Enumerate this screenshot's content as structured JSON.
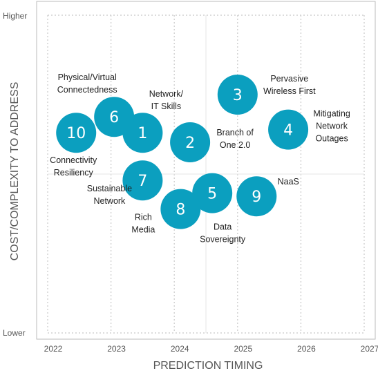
{
  "chart_data": {
    "type": "scatter",
    "xlabel": "PREDICTION TIMING",
    "ylabel": "COST/COMPLEXITY TO ADDRESS",
    "x_ticks": [
      "2022",
      "2023",
      "2024",
      "2025",
      "2026",
      "2027"
    ],
    "xlim": [
      2022,
      2027
    ],
    "y_ticks": [
      "Lower",
      "Higher"
    ],
    "ylim": [
      0,
      100
    ],
    "grid": true,
    "colors": {
      "bubble": "#0b9fbf",
      "bubble_text": "#ffffff",
      "grid": "#d0d0d0",
      "frame": "#bbbbbb"
    },
    "points": [
      {
        "id": "1",
        "x": 2023.5,
        "y": 63,
        "label": [
          "Network/",
          "IT Skills"
        ]
      },
      {
        "id": "2",
        "x": 2024.25,
        "y": 60,
        "label": [
          "Branch of",
          "One 2.0"
        ]
      },
      {
        "id": "3",
        "x": 2025.0,
        "y": 75,
        "label": [
          "Pervasive",
          "Wireless First"
        ]
      },
      {
        "id": "4",
        "x": 2025.8,
        "y": 64,
        "label": [
          "Mitigating",
          "Network",
          "Outages"
        ]
      },
      {
        "id": "5",
        "x": 2024.6,
        "y": 44,
        "label": [
          "Data",
          "Sovereignty"
        ]
      },
      {
        "id": "6",
        "x": 2023.05,
        "y": 68,
        "label": [
          "Physical/Virtual",
          "Connectedness"
        ]
      },
      {
        "id": "7",
        "x": 2023.5,
        "y": 48,
        "label": [
          "Sustainable",
          "Network"
        ]
      },
      {
        "id": "8",
        "x": 2024.1,
        "y": 39,
        "label": [
          "Rich",
          "Media"
        ]
      },
      {
        "id": "9",
        "x": 2025.3,
        "y": 43,
        "label": [
          "NaaS"
        ]
      },
      {
        "id": "10",
        "x": 2022.45,
        "y": 63,
        "label": [
          "Connectivity",
          "Resiliency"
        ]
      }
    ]
  }
}
